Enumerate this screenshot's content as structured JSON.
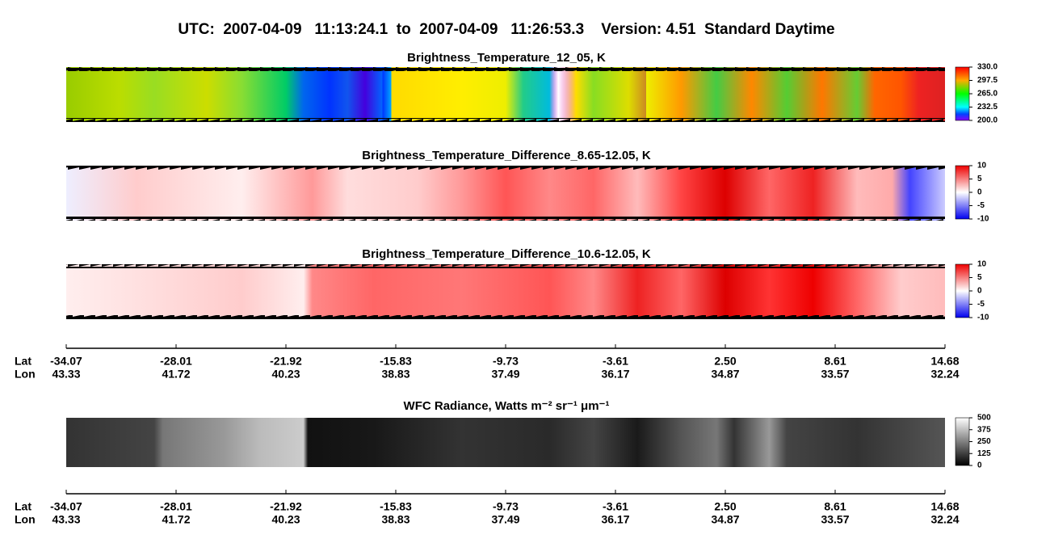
{
  "header": {
    "title": "UTC:  2007-04-09   11:13:24.1  to  2007-04-09   11:26:53.3    Version: 4.51  Standard Daytime"
  },
  "panels": [
    {
      "title": "Brightness_Temperature_12_05, K",
      "colormap": "rainbow",
      "clim": [
        200,
        330
      ],
      "cticks": [
        {
          "value": 330,
          "label": "330.0"
        },
        {
          "value": 297.5,
          "label": "297.5"
        },
        {
          "value": 265,
          "label": "265.0"
        },
        {
          "value": 232.5,
          "label": "232.5"
        },
        {
          "value": 200,
          "label": "200.0"
        }
      ]
    },
    {
      "title": "Brightness_Temperature_Difference_8.65-12.05, K",
      "colormap": "bwr",
      "clim": [
        -10,
        10
      ],
      "cticks": [
        10,
        5,
        0,
        -5,
        -10
      ]
    },
    {
      "title": "Brightness_Temperature_Difference_10.6-12.05, K",
      "colormap": "bwr",
      "clim": [
        -10,
        10
      ],
      "cticks": [
        10,
        5,
        0,
        -5,
        -10
      ]
    },
    {
      "title": "WFC Radiance, Watts m⁻² sr⁻¹ μm⁻¹",
      "colormap": "gray",
      "clim": [
        0,
        500
      ],
      "cticks": [
        500,
        375,
        250,
        125,
        0
      ]
    }
  ],
  "axes": [
    {
      "lat_label": "Lat",
      "lon_label": "Lon",
      "lat": [
        -34.07,
        -28.01,
        -21.92,
        -15.83,
        -9.73,
        -3.61,
        {
          "value": 2.5,
          "label": "2.50"
        },
        8.61,
        14.68
      ],
      "lon": [
        43.33,
        41.72,
        40.23,
        38.83,
        37.49,
        36.17,
        34.87,
        33.57,
        32.24
      ]
    },
    {
      "lat_label": "Lat",
      "lon_label": "Lon",
      "lat": [
        -34.07,
        -28.01,
        -21.92,
        -15.83,
        -9.73,
        -3.61,
        {
          "value": 2.5,
          "label": "2.50"
        },
        8.61,
        14.68
      ],
      "lon": [
        43.33,
        41.72,
        40.23,
        38.83,
        37.49,
        36.17,
        34.87,
        33.57,
        32.24
      ]
    }
  ]
}
